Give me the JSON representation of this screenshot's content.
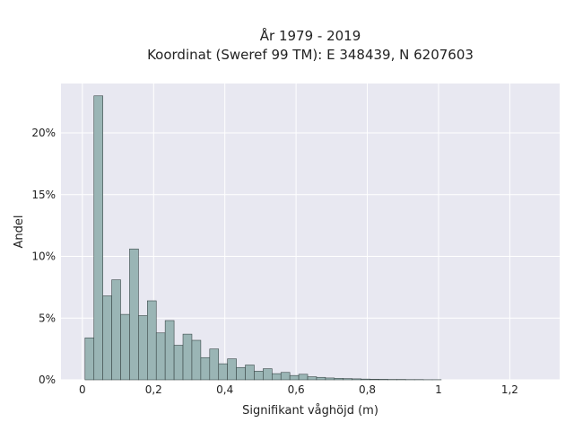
{
  "chart_data": {
    "type": "bar",
    "title_line1": "År 1979 - 2019",
    "title_line2": "Koordinat (Sweref 99 TM): E 348439, N 6207603",
    "xlabel": "Signifikant våghöjd (m)",
    "ylabel": "Andel",
    "xlim": [
      -0.06,
      1.34
    ],
    "ylim": [
      0,
      24
    ],
    "x_ticks": [
      0,
      0.2,
      0.4,
      0.6,
      0.8,
      1,
      1.2
    ],
    "x_tick_labels": [
      "0",
      "0,2",
      "0,4",
      "0,6",
      "0,8",
      "1",
      "1,2"
    ],
    "y_ticks": [
      0,
      5,
      10,
      15,
      20
    ],
    "y_tick_labels": [
      "0%",
      "5%",
      "10%",
      "15%",
      "20%"
    ],
    "bin_width": 0.025,
    "bin_starts": [
      0.0075,
      0.0325,
      0.0575,
      0.0825,
      0.1075,
      0.1325,
      0.1575,
      0.1825,
      0.2075,
      0.2325,
      0.2575,
      0.2825,
      0.3075,
      0.3325,
      0.3575,
      0.3825,
      0.4075,
      0.4325,
      0.4575,
      0.4825,
      0.5075,
      0.5325,
      0.5575,
      0.5825,
      0.6075,
      0.6325,
      0.6575,
      0.6825,
      0.7075,
      0.7325,
      0.7575,
      0.7825,
      0.8075,
      0.8325,
      0.8575,
      0.8825,
      0.9075,
      0.9325,
      0.9575,
      0.9825
    ],
    "values": [
      3.4,
      23.0,
      6.8,
      8.1,
      5.3,
      10.6,
      5.2,
      6.4,
      3.8,
      4.8,
      2.8,
      3.7,
      3.2,
      1.8,
      2.5,
      1.3,
      1.7,
      1.0,
      1.2,
      0.7,
      0.9,
      0.5,
      0.6,
      0.35,
      0.45,
      0.25,
      0.2,
      0.15,
      0.12,
      0.1,
      0.08,
      0.06,
      0.05,
      0.04,
      0.03,
      0.03,
      0.02,
      0.02,
      0.01,
      0.01
    ],
    "grid": true,
    "colors": {
      "bar_fill": "#9ab5b5",
      "bar_stroke": "#3a4848",
      "plot_bg": "#e8e8f1",
      "grid": "#ffffff"
    }
  }
}
